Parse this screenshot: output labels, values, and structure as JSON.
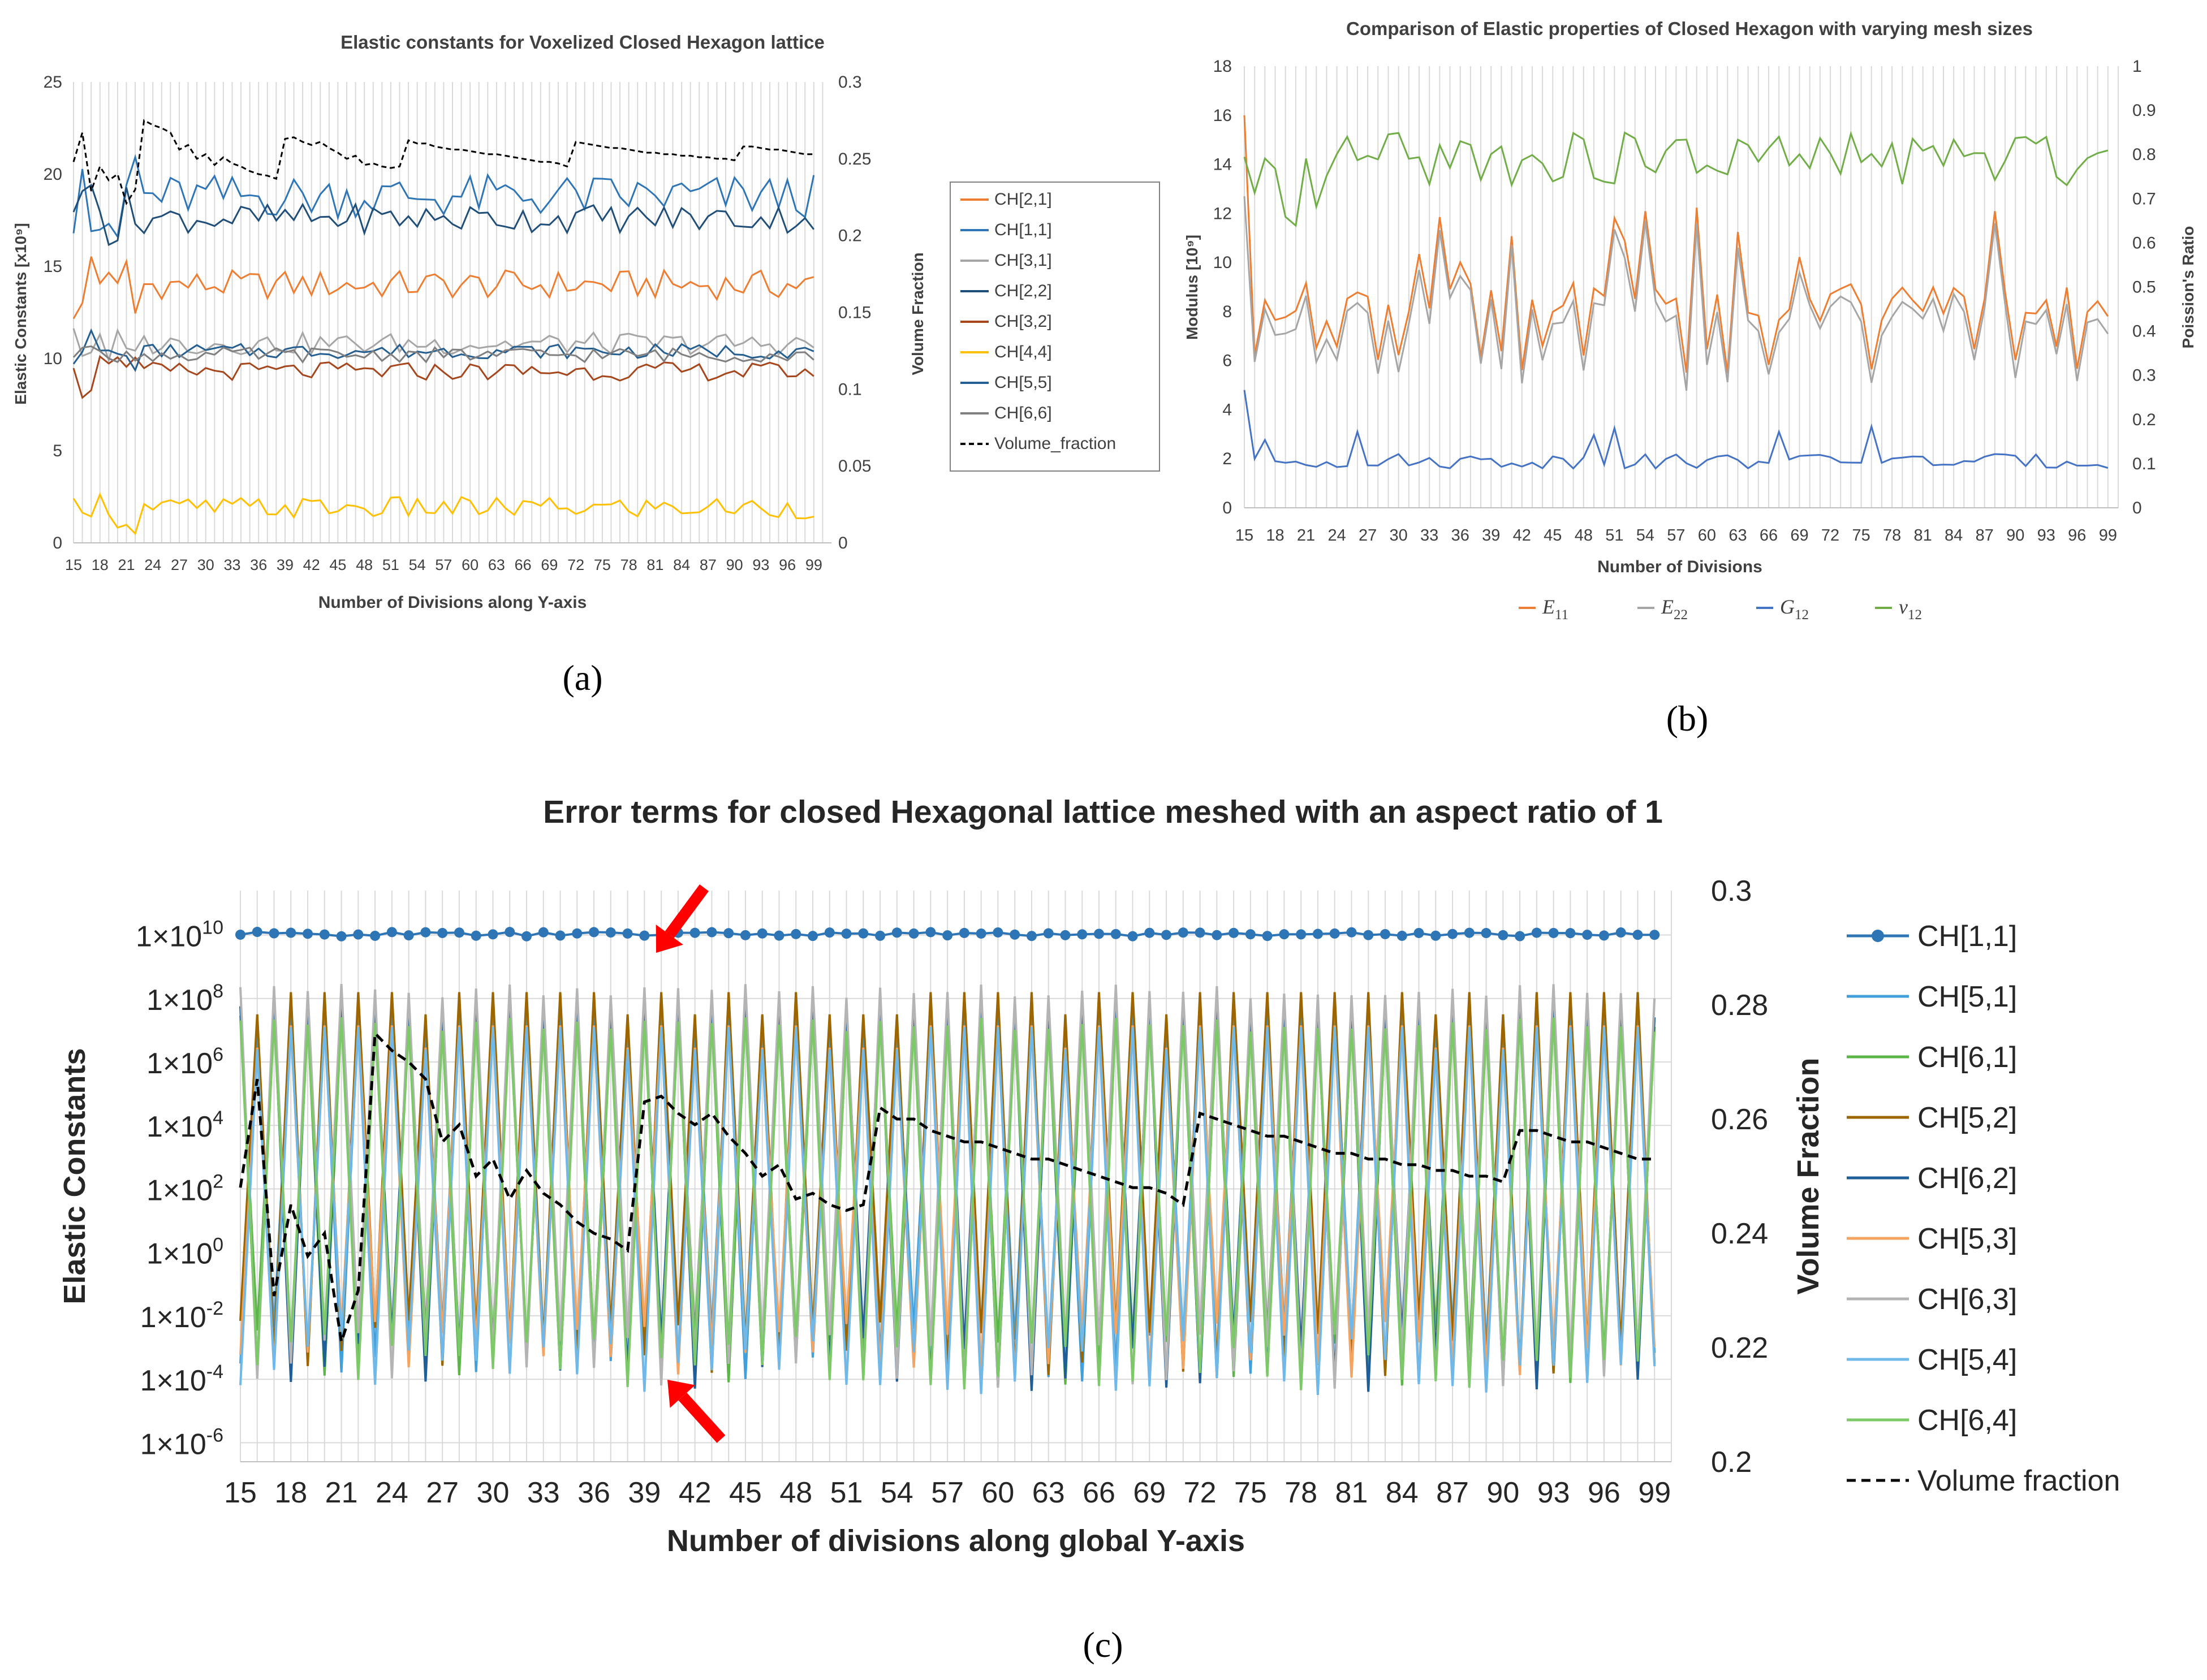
{
  "chart_data": [
    {
      "panel": "a",
      "panel_label": "(a)",
      "type": "line",
      "title": "Elastic constants for Voxelized Closed Hexagon lattice",
      "xlabel": "Number of Divisions along Y-axis",
      "ylabel": "Elastic Constants [x10⁹]",
      "y2label": "Volume Fraction",
      "ylim": [
        0,
        25
      ],
      "y2lim": [
        0,
        0.3
      ],
      "yticks": [
        "0",
        "5",
        "10",
        "15",
        "20",
        "25"
      ],
      "y2ticks": [
        "0",
        "0.05",
        "0.1",
        "0.15",
        "0.2",
        "0.25",
        "0.3"
      ],
      "xticks": [
        "15",
        "18",
        "21",
        "24",
        "27",
        "30",
        "33",
        "36",
        "39",
        "42",
        "45",
        "48",
        "51",
        "54",
        "57",
        "60",
        "63",
        "66",
        "69",
        "72",
        "75",
        "78",
        "81",
        "84",
        "87",
        "90",
        "93",
        "96",
        "99"
      ],
      "grid": "vertical",
      "legend_position": "right",
      "series": [
        {
          "name": "CH[2,1]",
          "color": "#ED7D31",
          "axis": "left",
          "base": 14.0,
          "amp": 0.8
        },
        {
          "name": "CH[1,1]",
          "color": "#2E75B6",
          "axis": "left",
          "base": 18.8,
          "amp": 1.2
        },
        {
          "name": "CH[3,1]",
          "color": "#A5A5A5",
          "axis": "left",
          "base": 10.8,
          "amp": 0.6
        },
        {
          "name": "CH[2,2]",
          "color": "#1F4E79",
          "axis": "left",
          "base": 17.6,
          "amp": 0.8
        },
        {
          "name": "CH[3,2]",
          "color": "#A5461C",
          "axis": "left",
          "base": 9.3,
          "amp": 0.5
        },
        {
          "name": "CH[4,4]",
          "color": "#FFC000",
          "axis": "left",
          "base": 1.9,
          "amp": 0.6
        },
        {
          "name": "CH[5,5]",
          "color": "#255E91",
          "axis": "left",
          "base": 10.4,
          "amp": 0.4
        },
        {
          "name": "CH[6,6]",
          "color": "#7F7F7F",
          "axis": "left",
          "base": 10.2,
          "amp": 0.4
        },
        {
          "name": "Volume_fraction",
          "color": "#000000",
          "axis": "right",
          "dashed": true
        }
      ]
    },
    {
      "panel": "b",
      "panel_label": "(b)",
      "type": "line",
      "title": "Comparison of Elastic properties of Closed Hexagon with varying mesh sizes",
      "xlabel": "Number of Divisions",
      "ylabel": "Modulus [10⁹]",
      "y2label": "Poission's Ratio",
      "ylim": [
        0,
        18
      ],
      "y2lim": [
        0,
        1
      ],
      "yticks": [
        "0",
        "2",
        "4",
        "6",
        "8",
        "10",
        "12",
        "14",
        "16",
        "18"
      ],
      "y2ticks": [
        "0",
        "0.1",
        "0.2",
        "0.3",
        "0.4",
        "0.5",
        "0.6",
        "0.7",
        "0.8",
        "0.9",
        "1"
      ],
      "xticks": [
        "15",
        "18",
        "21",
        "24",
        "27",
        "30",
        "33",
        "36",
        "39",
        "42",
        "45",
        "48",
        "51",
        "54",
        "57",
        "60",
        "63",
        "66",
        "69",
        "72",
        "75",
        "78",
        "81",
        "84",
        "87",
        "90",
        "93",
        "96",
        "99"
      ],
      "grid": "vertical",
      "legend_position": "bottom",
      "series": [
        {
          "name": "E",
          "sub": "11",
          "color": "#ED7D31",
          "axis": "left"
        },
        {
          "name": "E",
          "sub": "22",
          "color": "#A5A5A5",
          "axis": "left"
        },
        {
          "name": "G",
          "sub": "12",
          "color": "#4472C4",
          "axis": "left"
        },
        {
          "name": "ν",
          "sub": "12",
          "color": "#70AD47",
          "axis": "right"
        }
      ]
    },
    {
      "panel": "c",
      "panel_label": "(c)",
      "type": "line",
      "title": "Error terms for closed Hexagonal lattice meshed with an aspect ratio of 1",
      "xlabel": "Number of divisions along global Y-axis",
      "ylabel": "Elastic Constants",
      "y2label": "Volume Fraction",
      "yscale": "log",
      "ylim_exp": [
        -6,
        11
      ],
      "y2lim": [
        0.2,
        0.3
      ],
      "yticks": [
        {
          "mant": "1×10",
          "exp": "10"
        },
        {
          "mant": "1×10",
          "exp": "8"
        },
        {
          "mant": "1×10",
          "exp": "6"
        },
        {
          "mant": "1×10",
          "exp": "4"
        },
        {
          "mant": "1×10",
          "exp": "2"
        },
        {
          "mant": "1×10",
          "exp": "0"
        },
        {
          "mant": "1×10",
          "exp": "-2"
        },
        {
          "mant": "1×10",
          "exp": "-4"
        },
        {
          "mant": "1×10",
          "exp": "-6"
        }
      ],
      "y2ticks": [
        "0.3",
        "0.28",
        "0.26",
        "0.24",
        "0.22",
        "0.2"
      ],
      "xticks": [
        "15",
        "18",
        "21",
        "24",
        "27",
        "30",
        "33",
        "36",
        "39",
        "42",
        "45",
        "48",
        "51",
        "54",
        "57",
        "60",
        "63",
        "66",
        "69",
        "72",
        "75",
        "78",
        "81",
        "84",
        "87",
        "90",
        "93",
        "96",
        "99"
      ],
      "grid": "both",
      "legend_position": "right",
      "annotations": [
        "red arrow near x=40 top",
        "red arrow near x=40 bottom"
      ],
      "series": [
        {
          "name": "CH[1,1]",
          "color": "#2E75B6",
          "axis": "left",
          "markers": true
        },
        {
          "name": "CH[5,1]",
          "color": "#41A0DC",
          "axis": "left"
        },
        {
          "name": "CH[6,1]",
          "color": "#5BB547",
          "axis": "left"
        },
        {
          "name": "CH[5,2]",
          "color": "#9C6500",
          "axis": "left"
        },
        {
          "name": "CH[6,2]",
          "color": "#1F5E96",
          "axis": "left"
        },
        {
          "name": "CH[5,3]",
          "color": "#F4A460",
          "axis": "left"
        },
        {
          "name": "CH[6,3]",
          "color": "#B4B4B4",
          "axis": "left"
        },
        {
          "name": "CH[5,4]",
          "color": "#6FB8E8",
          "axis": "left"
        },
        {
          "name": "CH[6,4]",
          "color": "#7DC868",
          "axis": "left"
        },
        {
          "name": "Volume  fraction",
          "color": "#000000",
          "axis": "right",
          "dashed": true
        }
      ]
    }
  ],
  "volume_fraction": {
    "x": [
      15,
      16,
      17,
      18,
      19,
      20,
      21,
      22,
      23,
      24,
      25,
      26,
      27,
      28,
      29,
      30,
      31,
      32,
      33,
      34,
      35,
      36,
      37,
      38,
      39,
      40,
      41,
      42,
      43,
      44,
      45,
      46,
      47,
      48,
      49,
      50,
      51,
      52,
      53,
      54,
      55,
      56,
      57,
      58,
      59,
      60,
      61,
      62,
      63,
      64,
      65,
      66,
      67,
      68,
      69,
      70,
      71,
      72,
      73,
      74,
      75,
      76,
      77,
      78,
      79,
      80,
      81,
      82,
      83,
      84,
      85,
      86,
      87,
      88,
      89,
      90,
      91,
      92,
      93,
      94,
      95,
      96,
      97,
      98,
      99
    ],
    "y": [
      0.248,
      0.267,
      0.229,
      0.245,
      0.236,
      0.24,
      0.221,
      0.23,
      0.275,
      0.272,
      0.27,
      0.267,
      0.256,
      0.259,
      0.25,
      0.253,
      0.246,
      0.251,
      0.247,
      0.245,
      0.242,
      0.24,
      0.239,
      0.237,
      0.263,
      0.264,
      0.261,
      0.259,
      0.261,
      0.257,
      0.254,
      0.25,
      0.252,
      0.246,
      0.247,
      0.245,
      0.244,
      0.245,
      0.262,
      0.26,
      0.26,
      0.258,
      0.257,
      0.256,
      0.256,
      0.255,
      0.254,
      0.253,
      0.253,
      0.252,
      0.251,
      0.25,
      0.249,
      0.248,
      0.248,
      0.247,
      0.245,
      0.261,
      0.26,
      0.259,
      0.258,
      0.257,
      0.257,
      0.256,
      0.255,
      0.254,
      0.254,
      0.253,
      0.253,
      0.252,
      0.252,
      0.251,
      0.251,
      0.25,
      0.25,
      0.249,
      0.258,
      0.258,
      0.257,
      0.256,
      0.256,
      0.255,
      0.254,
      0.253,
      0.253
    ]
  }
}
